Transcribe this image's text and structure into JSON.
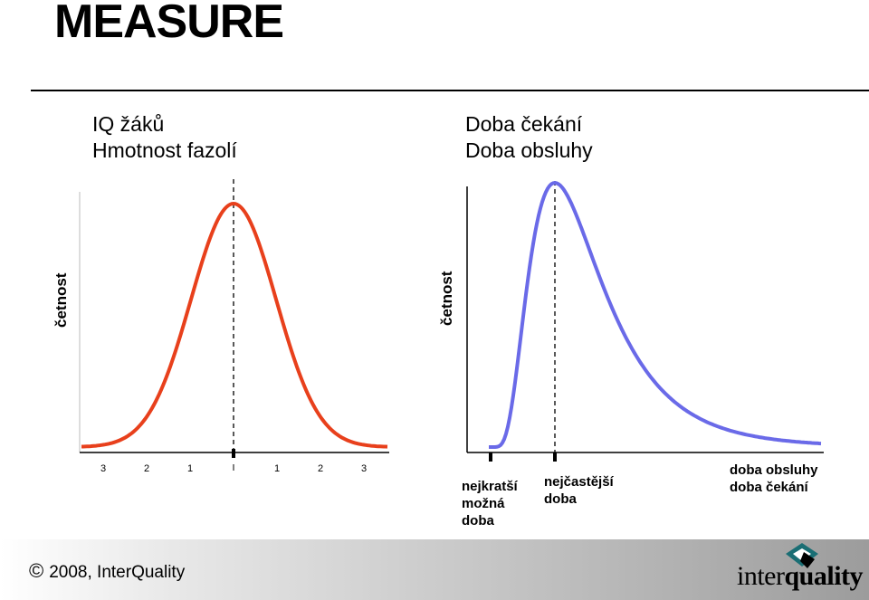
{
  "title": "MEASURE",
  "left_panel": {
    "labels": [
      "IQ žáků",
      "Hmotnost fazolí"
    ],
    "ylabel": "četnost",
    "ticks": [
      "3",
      "2",
      "1",
      "",
      "1",
      "2",
      "3"
    ]
  },
  "right_panel": {
    "labels": [
      "Doba čekání",
      "Doba obsluhy"
    ],
    "ylabel": "četnost",
    "annotations": {
      "shortest": [
        "nejkratší",
        "možná",
        "doba"
      ],
      "most_frequent": [
        "nejčastější",
        "doba"
      ],
      "axis_end": [
        "doba obsluhy",
        "doba čekání"
      ]
    }
  },
  "chart_data": [
    {
      "type": "line",
      "shape": "normal distribution",
      "color": "#e8401c",
      "x_ticks": [
        -3,
        -2,
        -1,
        0,
        1,
        2,
        3
      ],
      "tick_labels": [
        "3",
        "2",
        "1",
        "",
        "1",
        "2",
        "3"
      ],
      "mean_marker": "dashed vertical line at 0",
      "ylabel": "četnost"
    },
    {
      "type": "line",
      "shape": "right-skewed distribution",
      "color": "#6a6ae8",
      "markers": [
        "nejkratší možná doba",
        "nejčastější doba"
      ],
      "mode_marker": "dashed vertical line at mode",
      "ylabel": "četnost"
    }
  ],
  "footer": {
    "copyright_symbol": "©",
    "copyright": "2008, InterQuality",
    "logo_text_light": "inter",
    "logo_text_bold": "quality",
    "colors": {
      "logo_diamond": "#1a6e74"
    }
  }
}
